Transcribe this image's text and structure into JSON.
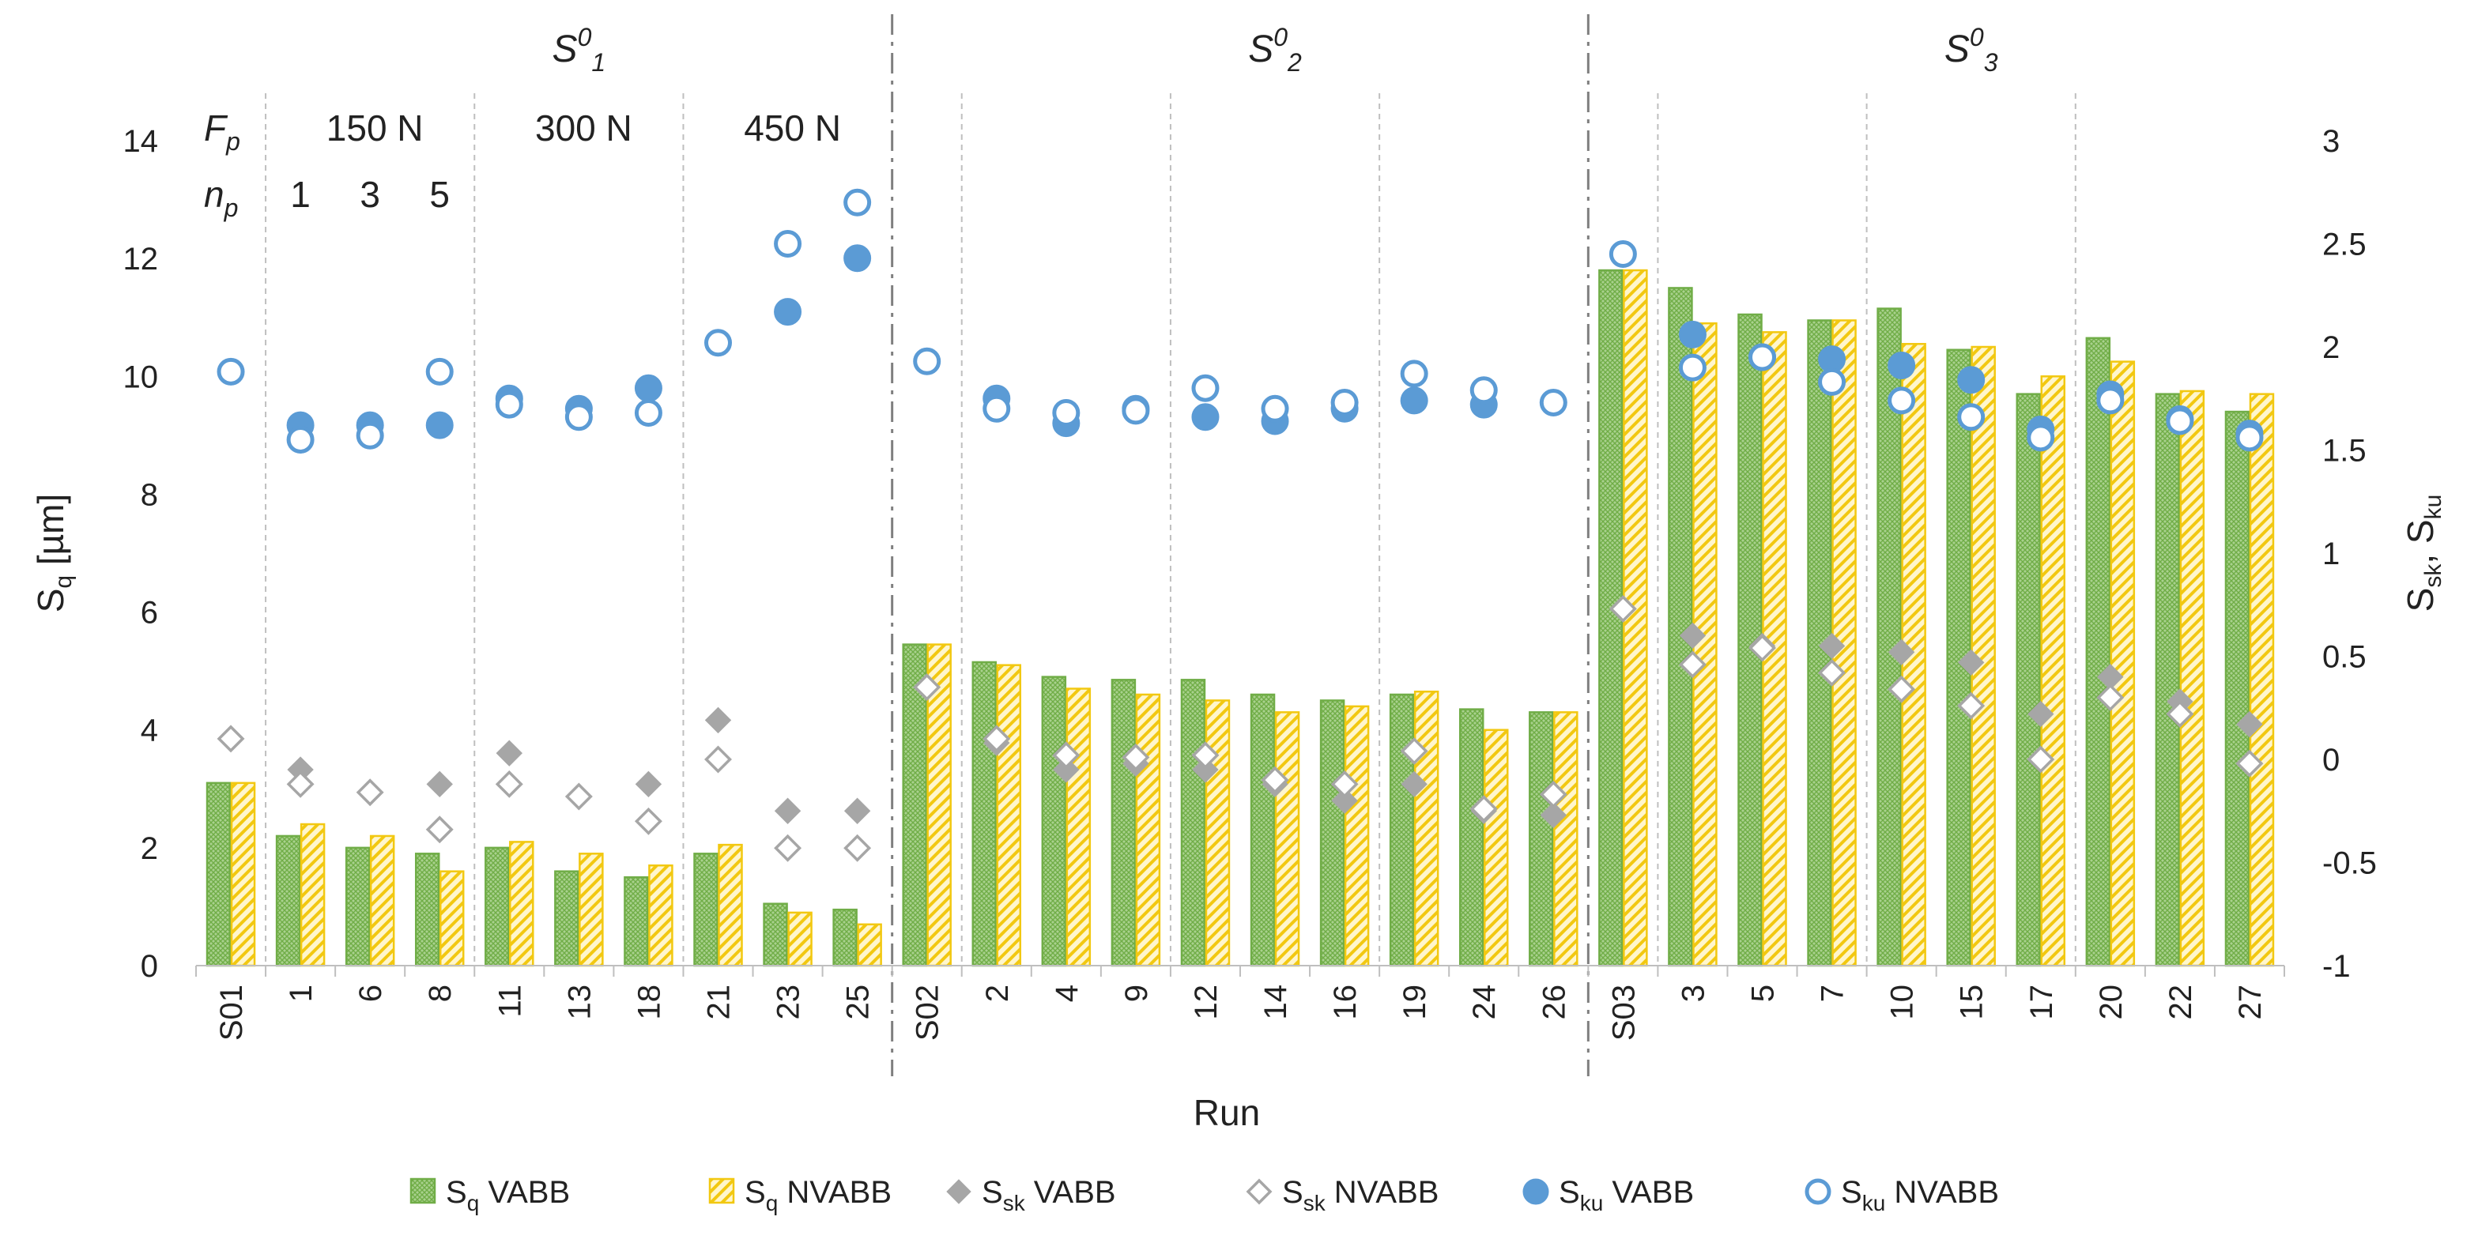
{
  "chart_data": {
    "type": "bar",
    "xlabel": "Run",
    "ylabel": "S_q [μm]",
    "y2label": "S_sk, S_ku",
    "ylim": [
      0,
      14
    ],
    "y2lim": [
      -1,
      3
    ],
    "y_ticks": [
      0,
      2,
      4,
      6,
      8,
      10,
      12,
      14
    ],
    "y2_ticks": [
      "-1",
      "-0.5",
      "0",
      "0.5",
      "1",
      "1.5",
      "2",
      "2.5",
      "3"
    ],
    "categories": [
      "S01",
      "1",
      "6",
      "8",
      "11",
      "13",
      "18",
      "21",
      "23",
      "25",
      "S02",
      "2",
      "4",
      "9",
      "12",
      "14",
      "16",
      "19",
      "24",
      "26",
      "S03",
      "3",
      "5",
      "7",
      "10",
      "15",
      "17",
      "20",
      "22",
      "27"
    ],
    "groups": [
      {
        "label": "S",
        "sup": "0",
        "sub": "1"
      },
      {
        "label": "S",
        "sup": "0",
        "sub": "2"
      },
      {
        "label": "S",
        "sup": "0",
        "sub": "3"
      }
    ],
    "fp_label": "F",
    "fp_sub": "p",
    "np_label": "n",
    "np_sub": "p",
    "fp_values": [
      "150 N",
      "300 N",
      "450 N"
    ],
    "np_values": [
      "1",
      "3",
      "5"
    ],
    "series": [
      {
        "name": "Sq VABB",
        "axis": "left",
        "kind": "bar",
        "color": "#70ad47",
        "values": [
          3.1,
          2.2,
          2.0,
          1.9,
          2.0,
          1.6,
          1.5,
          1.9,
          1.05,
          0.95,
          5.45,
          5.15,
          4.9,
          4.85,
          4.85,
          4.6,
          4.5,
          4.6,
          4.35,
          4.3,
          11.8,
          11.5,
          11.05,
          10.95,
          11.15,
          10.45,
          9.7,
          10.65,
          9.7,
          9.4
        ]
      },
      {
        "name": "Sq NVABB",
        "axis": "left",
        "kind": "bar",
        "color": "#f2c811",
        "values": [
          3.1,
          2.4,
          2.2,
          1.6,
          2.1,
          1.9,
          1.7,
          2.05,
          0.9,
          0.7,
          5.45,
          5.1,
          4.7,
          4.6,
          4.5,
          4.3,
          4.4,
          4.65,
          4.0,
          4.3,
          11.8,
          10.9,
          10.75,
          10.95,
          10.55,
          10.5,
          10.0,
          10.25,
          9.75,
          9.7
        ]
      },
      {
        "name": "Ssk VABB",
        "axis": "right",
        "kind": "diamond-filled",
        "color": "#a6a6a6",
        "values": [
          null,
          -0.05,
          null,
          -0.12,
          0.03,
          null,
          -0.12,
          0.19,
          -0.25,
          -0.25,
          null,
          0.08,
          -0.05,
          -0.02,
          -0.05,
          -0.12,
          -0.2,
          -0.12,
          -0.25,
          -0.27,
          null,
          0.6,
          0.55,
          0.55,
          0.52,
          0.47,
          0.22,
          0.4,
          0.28,
          0.17
        ]
      },
      {
        "name": "Ssk NVABB",
        "axis": "right",
        "kind": "diamond-open",
        "color": "#a6a6a6",
        "values": [
          0.1,
          -0.12,
          -0.16,
          -0.34,
          -0.12,
          -0.18,
          -0.3,
          0.0,
          -0.43,
          -0.43,
          0.35,
          0.1,
          0.02,
          0.01,
          0.02,
          -0.1,
          -0.12,
          0.04,
          -0.24,
          -0.17,
          0.73,
          0.46,
          0.54,
          0.42,
          0.34,
          0.26,
          0.0,
          0.3,
          0.22,
          -0.02
        ]
      },
      {
        "name": "Sku VABB",
        "axis": "right",
        "kind": "circle-filled",
        "color": "#5b9bd5",
        "values": [
          null,
          1.62,
          1.62,
          1.62,
          1.75,
          1.7,
          1.8,
          null,
          2.17,
          2.43,
          null,
          1.75,
          1.63,
          1.7,
          1.66,
          1.64,
          1.7,
          1.74,
          1.72,
          null,
          null,
          2.06,
          1.95,
          1.94,
          1.91,
          1.84,
          1.6,
          1.77,
          1.65,
          1.58
        ]
      },
      {
        "name": "Sku NVABB",
        "axis": "right",
        "kind": "circle-open",
        "color": "#5b9bd5",
        "values": [
          1.88,
          1.55,
          1.57,
          1.88,
          1.72,
          1.66,
          1.68,
          2.02,
          2.5,
          2.7,
          1.93,
          1.7,
          1.68,
          1.69,
          1.8,
          1.7,
          1.73,
          1.87,
          1.79,
          1.73,
          2.45,
          1.9,
          1.95,
          1.83,
          1.74,
          1.66,
          1.56,
          1.74,
          1.64,
          1.56
        ]
      }
    ],
    "legend": [
      {
        "label": "S",
        "sub": "q",
        "suffix": " VABB",
        "kind": "bar-green"
      },
      {
        "label": "S",
        "sub": "q",
        "suffix": " NVABB",
        "kind": "bar-yellow"
      },
      {
        "label": "S",
        "sub": "sk",
        "suffix": " VABB",
        "kind": "diamond-filled"
      },
      {
        "label": "S",
        "sub": "sk",
        "suffix": " NVABB",
        "kind": "diamond-open"
      },
      {
        "label": "S",
        "sub": "ku",
        "suffix": " VABB",
        "kind": "circle-filled"
      },
      {
        "label": "S",
        "sub": "ku",
        "suffix": " NVABB",
        "kind": "circle-open"
      }
    ],
    "legend_position": "bottom",
    "grid": false
  }
}
